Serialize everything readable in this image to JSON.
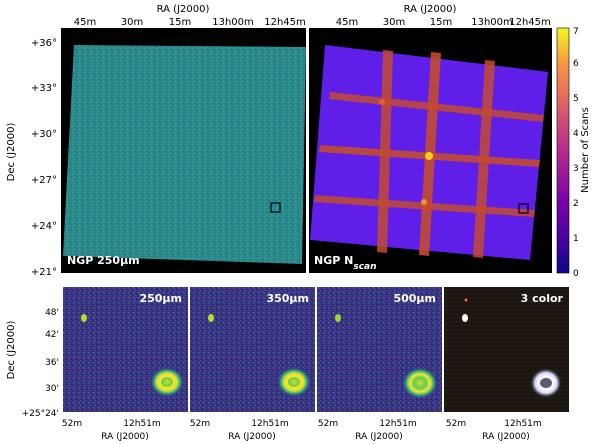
{
  "top": {
    "ra_axis_label": "RA (J2000)",
    "dec_axis_label": "Dec (J2000)",
    "ra_ticks": [
      "45m",
      "30m",
      "15m",
      "13h00m",
      "12h45m"
    ],
    "dec_ticks": [
      "+36°",
      "+33°",
      "+30°",
      "+27°",
      "+24°",
      "+21°"
    ],
    "left_panel_label": "NGP 250μm",
    "right_panel_label": "NGP N",
    "right_panel_label_sub": "scan"
  },
  "colorbar": {
    "label": "Number of Scans",
    "ticks": [
      "0",
      "1",
      "2",
      "3",
      "4",
      "5",
      "6",
      "7"
    ]
  },
  "bottom": {
    "dec_axis_label": "Dec (J2000)",
    "ra_axis_label": "RA (J2000)",
    "dec_ticks": [
      "48'",
      "42'",
      "36'",
      "30'",
      "+25°24'"
    ],
    "ra_ticks": [
      "52m",
      "12h51m"
    ],
    "panels": [
      "250μm",
      "350μm",
      "500μm",
      "3 color"
    ]
  }
}
